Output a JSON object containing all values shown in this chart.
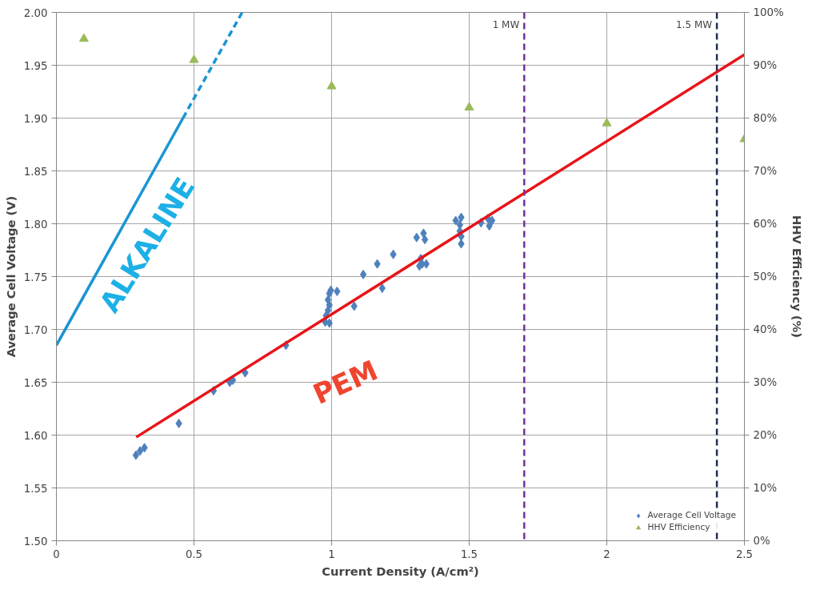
{
  "chart_data": {
    "type": "scatter",
    "xlabel": "Current Density (A/cm²)",
    "ylabel": "Average Cell Voltage (V)",
    "y2label": "HHV Efficiency (%)",
    "xlim": [
      0,
      2.5
    ],
    "xticks": [
      0,
      0.5,
      1,
      1.5,
      2,
      2.5
    ],
    "ylim": [
      1.5,
      2.0
    ],
    "yticks": [
      {
        "value": 1.5,
        "label": "1.50"
      },
      {
        "value": 1.55,
        "label": "1.55"
      },
      {
        "value": 1.6,
        "label": "1.60"
      },
      {
        "value": 1.65,
        "label": "1.65"
      },
      {
        "value": 1.7,
        "label": "1.70"
      },
      {
        "value": 1.75,
        "label": "1.75"
      },
      {
        "value": 1.8,
        "label": "1.80"
      },
      {
        "value": 1.85,
        "label": "1.85"
      },
      {
        "value": 1.9,
        "label": "1.90"
      },
      {
        "value": 1.95,
        "label": "1.95"
      },
      {
        "value": 2.0,
        "label": "2.00"
      }
    ],
    "y2lim": [
      0,
      100
    ],
    "y2ticks": [
      {
        "value": 0,
        "label": "0%"
      },
      {
        "value": 10,
        "label": "10%"
      },
      {
        "value": 20,
        "label": "20%"
      },
      {
        "value": 30,
        "label": "30%"
      },
      {
        "value": 40,
        "label": "40%"
      },
      {
        "value": 50,
        "label": "50%"
      },
      {
        "value": 60,
        "label": "60%"
      },
      {
        "value": 70,
        "label": "70%"
      },
      {
        "value": 80,
        "label": "80%"
      },
      {
        "value": 90,
        "label": "90%"
      },
      {
        "value": 100,
        "label": "100%"
      }
    ],
    "grid": true,
    "legend": "bottom right",
    "series": [
      {
        "name": "Average Cell Voltage",
        "color": "#4f81bd",
        "marker": "diamond",
        "x": [
          0.289,
          0.304,
          0.32,
          0.445,
          0.571,
          0.63,
          0.641,
          0.686,
          0.834,
          0.977,
          0.992,
          0.98,
          0.987,
          0.992,
          0.987,
          0.992,
          0.997,
          1.02,
          1.082,
          1.115,
          1.166,
          1.224,
          1.184,
          1.309,
          1.334,
          1.339,
          1.324,
          1.329,
          1.344,
          1.319,
          1.451,
          1.471,
          1.466,
          1.466,
          1.471,
          1.471,
          1.543,
          1.568,
          1.573,
          1.583
        ],
        "values": [
          1.581,
          1.585,
          1.588,
          1.611,
          1.642,
          1.65,
          1.652,
          1.659,
          1.685,
          1.707,
          1.706,
          1.713,
          1.718,
          1.723,
          1.728,
          1.734,
          1.737,
          1.736,
          1.722,
          1.752,
          1.762,
          1.771,
          1.739,
          1.787,
          1.791,
          1.785,
          1.767,
          1.762,
          1.762,
          1.76,
          1.803,
          1.806,
          1.799,
          1.793,
          1.788,
          1.781,
          1.801,
          1.805,
          1.798,
          1.803
        ]
      },
      {
        "name": "HHV Efficiency",
        "color": "#9bbb59",
        "marker": "triangle",
        "axis": "y2",
        "x": [
          0.1,
          0.5,
          1,
          1.5,
          2,
          2.5
        ],
        "values": [
          95,
          91,
          86,
          82,
          79,
          76
        ]
      },
      {
        "type": "line",
        "color": "#e8141a",
        "line_style": "solid",
        "x": [
          0.29,
          2.5
        ],
        "values": [
          1.598,
          1.96
        ]
      },
      {
        "type": "line",
        "color": "#1a95d3",
        "line_style": "solid",
        "x": [
          0,
          0.46
        ],
        "values": [
          1.685,
          1.9
        ]
      },
      {
        "type": "line",
        "color": "#1a95d3",
        "line_style": "dashed",
        "x": [
          0.46,
          0.675
        ],
        "values": [
          1.9,
          2.0
        ]
      }
    ],
    "ref_lines": [
      {
        "axis": "x",
        "value": 1.7,
        "label": "1 MW",
        "color": "#7030a0",
        "line_style": "dashed"
      },
      {
        "axis": "x",
        "value": 2.4,
        "label": "1.5 MW",
        "color": "#1f2d50",
        "line_style": "dashed"
      }
    ],
    "annotations": [
      "ALKALINE",
      "PEM"
    ]
  }
}
